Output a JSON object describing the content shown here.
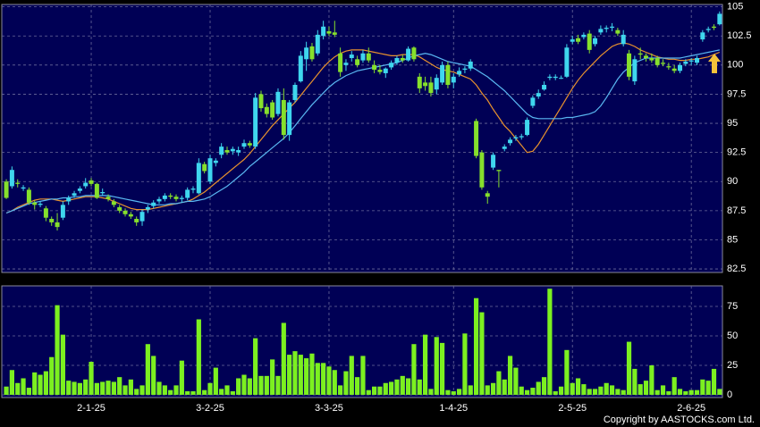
{
  "chart_data": [
    {
      "type": "candlestick",
      "up_color": "#3fd6ee",
      "down_color": "#86e02c",
      "open": [
        90.0,
        89.6,
        89.9,
        89.4,
        89.3,
        88.2,
        88.0,
        87.7,
        86.8,
        86.5,
        86.9,
        88.3,
        88.8,
        89.2,
        89.6,
        90.1,
        89.8,
        89.0,
        88.7,
        88.3,
        87.8,
        87.5,
        87.2,
        86.8,
        86.6,
        87.6,
        87.9,
        88.3,
        88.5,
        88.8,
        88.7,
        88.5,
        88.6,
        89.3,
        89.0,
        91.5,
        90.0,
        91.6,
        92.3,
        92.7,
        92.6,
        92.5,
        93.0,
        93.3,
        93.0,
        97.5,
        96.4,
        96.8,
        95.8,
        97.0,
        94.0,
        97.0,
        98.6,
        100.5,
        101.6,
        101.0,
        102.5,
        102.9,
        102.8,
        101.0,
        100.0,
        100.6,
        100.5,
        100.4,
        101.0,
        100.0,
        99.6,
        99.3,
        99.8,
        100.2,
        100.6,
        100.4,
        101.5,
        99.0,
        98.5,
        98.5,
        97.9,
        98.5,
        100.0,
        98.5,
        99.2,
        99.6,
        99.7,
        95.2,
        92.5,
        89.0,
        91.2,
        91.0,
        92.8,
        93.3,
        93.7,
        93.8,
        94.0,
        96.5,
        97.3,
        97.9,
        98.9,
        98.9,
        98.9,
        99.0,
        102.0,
        102.3,
        102.4,
        102.7,
        101.8,
        102.8,
        103.1,
        103.2,
        103.0,
        101.8,
        101.0,
        98.6,
        101.0,
        100.8,
        100.6,
        100.6,
        100.2,
        99.9,
        99.7,
        99.5,
        100.1,
        100.3,
        100.2,
        102.2,
        103.0,
        103.3,
        103.5
      ],
      "high": [
        90.2,
        91.3,
        90.2,
        89.7,
        89.5,
        88.4,
        88.3,
        87.9,
        87.0,
        87.3,
        88.3,
        88.8,
        89.2,
        89.6,
        90.3,
        90.3,
        89.9,
        89.4,
        88.9,
        88.5,
        88.0,
        87.7,
        87.4,
        87.0,
        87.6,
        88.0,
        88.4,
        88.7,
        89.0,
        89.0,
        88.9,
        88.8,
        89.5,
        89.6,
        92.0,
        91.7,
        92.3,
        92.0,
        93.3,
        93.0,
        93.0,
        93.0,
        93.6,
        93.5,
        97.6,
        97.8,
        96.7,
        97.0,
        98.0,
        98.0,
        97.0,
        98.5,
        101.2,
        102.0,
        101.9,
        103.0,
        103.8,
        103.3,
        103.8,
        101.5,
        100.5,
        101.2,
        100.8,
        101.3,
        101.5,
        100.4,
        100.0,
        99.8,
        100.4,
        100.8,
        100.9,
        101.6,
        101.6,
        99.3,
        99.0,
        99.0,
        99.2,
        100.3,
        100.3,
        99.3,
        99.8,
        99.9,
        100.5,
        95.4,
        92.7,
        89.2,
        92.5,
        91.0,
        93.2,
        93.8,
        94.0,
        94.1,
        95.5,
        97.4,
        97.9,
        98.6,
        99.2,
        99.2,
        99.1,
        101.8,
        102.5,
        102.6,
        102.8,
        103.0,
        102.5,
        103.4,
        103.4,
        103.6,
        103.2,
        103.0,
        101.3,
        100.8,
        101.5,
        101.0,
        101.0,
        100.8,
        100.5,
        100.2,
        100.0,
        100.2,
        100.5,
        100.6,
        100.8,
        103.0,
        103.3,
        103.5,
        104.6
      ],
      "low": [
        88.5,
        89.4,
        89.5,
        89.2,
        88.0,
        87.6,
        87.8,
        86.6,
        86.2,
        85.8,
        86.7,
        88.0,
        88.6,
        89.0,
        89.4,
        89.6,
        88.5,
        88.8,
        88.3,
        87.8,
        87.3,
        87.0,
        86.8,
        86.2,
        86.2,
        87.3,
        87.7,
        88.1,
        88.3,
        88.5,
        88.3,
        88.2,
        88.4,
        89.0,
        88.9,
        90.7,
        89.8,
        91.3,
        92.0,
        92.3,
        92.3,
        92.2,
        92.8,
        92.9,
        92.8,
        96.0,
        95.5,
        95.3,
        95.6,
        93.6,
        93.5,
        96.8,
        98.5,
        99.5,
        100.3,
        100.8,
        102.2,
        102.5,
        102.4,
        99.0,
        99.5,
        100.3,
        99.8,
        100.2,
        100.2,
        99.3,
        99.2,
        98.9,
        99.6,
        100.0,
        100.2,
        100.3,
        100.3,
        97.6,
        97.8,
        97.3,
        97.5,
        98.3,
        98.0,
        98.0,
        99.0,
        99.3,
        99.5,
        92.0,
        89.3,
        88.1,
        91.0,
        89.5,
        92.6,
        93.1,
        93.5,
        93.6,
        93.9,
        96.3,
        97.1,
        97.8,
        98.7,
        98.7,
        98.8,
        98.9,
        101.8,
        101.8,
        102.2,
        101.0,
        101.6,
        102.6,
        102.8,
        102.9,
        102.5,
        101.6,
        98.7,
        98.3,
        100.5,
        100.3,
        100.2,
        99.8,
        99.9,
        99.6,
        99.3,
        99.3,
        99.9,
        100.0,
        100.0,
        102.0,
        102.8,
        103.0,
        103.4
      ],
      "close": [
        88.6,
        91.0,
        89.8,
        89.5,
        88.2,
        88.0,
        88.1,
        86.9,
        86.5,
        86.1,
        88.0,
        88.6,
        89.0,
        89.4,
        89.9,
        89.8,
        88.6,
        89.1,
        88.5,
        88.0,
        87.5,
        87.2,
        87.0,
        86.5,
        87.4,
        87.8,
        88.2,
        88.5,
        88.8,
        88.7,
        88.5,
        88.6,
        89.3,
        89.4,
        91.6,
        90.9,
        92.0,
        91.8,
        93.0,
        92.5,
        92.8,
        92.7,
        93.3,
        93.1,
        97.2,
        96.3,
        95.8,
        95.5,
        97.7,
        94.0,
        96.8,
        98.3,
        100.8,
        101.5,
        100.5,
        102.6,
        103.3,
        102.7,
        102.6,
        99.4,
        100.2,
        100.9,
        100.0,
        101.0,
        100.4,
        99.6,
        99.4,
        99.7,
        100.2,
        100.6,
        100.4,
        101.4,
        100.5,
        98.0,
        98.2,
        97.6,
        98.9,
        100.0,
        98.3,
        99.0,
        99.5,
        99.7,
        100.3,
        92.2,
        89.5,
        88.7,
        92.3,
        90.9,
        93.0,
        93.6,
        93.8,
        93.9,
        95.3,
        97.2,
        97.6,
        98.3,
        99.0,
        99.0,
        98.9,
        101.5,
        102.2,
        102.0,
        102.6,
        101.3,
        102.3,
        103.1,
        103.2,
        103.3,
        102.7,
        102.6,
        99.0,
        100.5,
        100.9,
        100.6,
        100.4,
        100.0,
        100.1,
        99.8,
        99.5,
        100.0,
        100.3,
        100.4,
        100.6,
        102.8,
        103.1,
        103.2,
        104.4
      ],
      "series": [
        {
          "color": "#e8922e",
          "values": [
            87.3,
            87.5,
            87.8,
            88.0,
            88.2,
            88.4,
            88.5,
            88.5,
            88.5,
            88.4,
            88.3,
            88.4,
            88.5,
            88.6,
            88.7,
            88.7,
            88.7,
            88.6,
            88.5,
            88.3,
            88.1,
            87.9,
            87.7,
            87.6,
            87.6,
            87.6,
            87.7,
            87.8,
            87.9,
            88.0,
            88.1,
            88.2,
            88.3,
            88.5,
            88.8,
            89.1,
            89.5,
            89.9,
            90.3,
            90.7,
            91.1,
            91.5,
            91.9,
            92.4,
            93.0,
            93.6,
            94.2,
            94.8,
            95.3,
            95.8,
            96.3,
            96.8,
            97.4,
            98.0,
            98.6,
            99.2,
            99.8,
            100.3,
            100.7,
            101.0,
            101.2,
            101.3,
            101.3,
            101.3,
            101.2,
            101.1,
            101.0,
            100.9,
            100.8,
            100.8,
            100.9,
            100.9,
            100.9,
            100.7,
            100.4,
            100.1,
            99.8,
            99.6,
            99.5,
            99.4,
            99.2,
            99.0,
            98.8,
            98.3,
            97.6,
            97.0,
            96.2,
            95.5,
            94.8,
            94.3,
            93.7,
            93.1,
            92.5,
            92.6,
            93.2,
            94.0,
            94.8,
            95.6,
            96.4,
            97.2,
            98.0,
            98.7,
            99.3,
            99.8,
            100.3,
            100.8,
            101.2,
            101.6,
            101.8,
            101.9,
            101.8,
            101.6,
            101.3,
            101.1,
            100.9,
            100.7,
            100.6,
            100.5,
            100.5,
            100.4,
            100.4,
            100.5,
            100.5,
            100.6,
            100.7,
            100.9,
            101.1
          ]
        },
        {
          "color": "#5ab8f2",
          "values": [
            87.3,
            87.5,
            87.7,
            87.9,
            88.1,
            88.2,
            88.3,
            88.4,
            88.5,
            88.5,
            88.6,
            88.6,
            88.7,
            88.7,
            88.8,
            88.8,
            88.8,
            88.8,
            88.8,
            88.7,
            88.6,
            88.5,
            88.4,
            88.3,
            88.2,
            88.1,
            88.0,
            88.0,
            88.0,
            88.1,
            88.1,
            88.2,
            88.3,
            88.3,
            88.4,
            88.5,
            88.7,
            89.0,
            89.3,
            89.6,
            90.0,
            90.4,
            90.8,
            91.3,
            91.7,
            92.1,
            92.5,
            92.9,
            93.3,
            93.7,
            94.2,
            94.8,
            95.4,
            96.0,
            96.6,
            97.1,
            97.6,
            98.1,
            98.5,
            98.8,
            99.1,
            99.3,
            99.5,
            99.6,
            99.7,
            99.8,
            99.9,
            100.0,
            100.1,
            100.2,
            100.4,
            100.6,
            100.8,
            100.9,
            101.0,
            100.9,
            100.7,
            100.5,
            100.3,
            100.2,
            100.1,
            100.0,
            99.9,
            99.6,
            99.3,
            99.0,
            98.6,
            98.2,
            97.8,
            97.3,
            96.8,
            96.3,
            95.8,
            95.5,
            95.4,
            95.4,
            95.4,
            95.4,
            95.4,
            95.5,
            95.5,
            95.6,
            95.7,
            95.8,
            96.0,
            96.5,
            97.2,
            98.0,
            98.8,
            99.4,
            99.8,
            100.2,
            100.4,
            100.6,
            100.6,
            100.6,
            100.6,
            100.6,
            100.6,
            100.6,
            100.7,
            100.8,
            100.9,
            101.0,
            101.1,
            101.2,
            101.3
          ]
        }
      ],
      "xlim": [
        -0.8,
        126.5
      ],
      "ylim": [
        82.2,
        105.2
      ],
      "yticks": [
        82.5,
        85,
        87.5,
        90,
        92.5,
        95,
        97.5,
        100,
        102.5,
        105
      ],
      "grid": true
    },
    {
      "type": "bar",
      "color": "#7cf020",
      "values": [
        7,
        21,
        10,
        14,
        6,
        19,
        17,
        20,
        32,
        76,
        51,
        12,
        11,
        10,
        13,
        28,
        10,
        11,
        12,
        11,
        15,
        8,
        13,
        5,
        8,
        43,
        33,
        11,
        8,
        4,
        8,
        29,
        3,
        3,
        64,
        4,
        10,
        23,
        5,
        8,
        3,
        14,
        17,
        14,
        48,
        16,
        16,
        30,
        16,
        61,
        34,
        37,
        34,
        31,
        35,
        27,
        27,
        24,
        21,
        8,
        20,
        33,
        15,
        33,
        4,
        7,
        7,
        10,
        11,
        13,
        16,
        14,
        43,
        13,
        51,
        5,
        49,
        44,
        4,
        3,
        5,
        52,
        8,
        82,
        70,
        8,
        10,
        20,
        13,
        33,
        23,
        7,
        4,
        6,
        11,
        15,
        90,
        3,
        7,
        38,
        10,
        14,
        9,
        5,
        5,
        7,
        10,
        8,
        5,
        4,
        45,
        22,
        9,
        12,
        25,
        4,
        8,
        3,
        15,
        5,
        3,
        4,
        4,
        13,
        12,
        22,
        5
      ],
      "xlim": [
        -0.8,
        126.5
      ],
      "xticks": [
        {
          "value": 15,
          "label": "2-1-25"
        },
        {
          "value": 36,
          "label": "3-2-25"
        },
        {
          "value": 57,
          "label": "3-3-25"
        },
        {
          "value": 79,
          "label": "1-4-25"
        },
        {
          "value": 100,
          "label": "2-5-25"
        },
        {
          "value": 121,
          "label": "2-6-25"
        }
      ],
      "ylim": [
        -2.3,
        92.4
      ],
      "yticks": [
        0,
        25,
        50,
        75
      ],
      "grid": true
    }
  ],
  "copyright": "Copyright by AASTOCKS.com Ltd."
}
